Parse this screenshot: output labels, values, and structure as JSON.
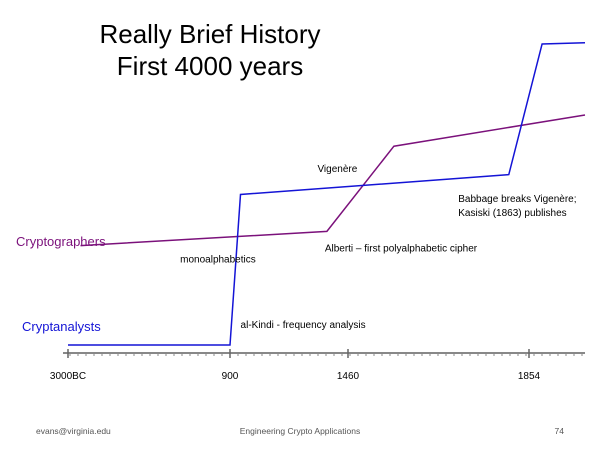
{
  "slide": {
    "title_line1": "Really Brief History",
    "title_line2": "First 4000 years",
    "footer_left": "evans@virginia.edu",
    "footer_center": "Engineering Crypto Applications",
    "footer_right": "74"
  },
  "chart_data": {
    "type": "line",
    "x_ticks": [
      "3000BC",
      "900",
      "1460",
      "1854"
    ],
    "grid": false,
    "series": [
      {
        "name": "Cryptographers",
        "color": "#7b117b",
        "points": [
          {
            "x": "-2700",
            "y": 1.95
          },
          {
            "x": "1360",
            "y": 2.2
          },
          {
            "x": "1560",
            "y": 3.7
          },
          {
            "x": "2050",
            "y": 4.25
          }
        ]
      },
      {
        "name": "Cryptanalysts",
        "color": "#1414d6",
        "points": [
          {
            "x": "3000BC",
            "y": 0.2
          },
          {
            "x": "900",
            "y": 0.2
          },
          {
            "x": "950",
            "y": 2.85
          },
          {
            "x": "1810",
            "y": 3.2
          },
          {
            "x": "1900",
            "y": 5.5
          },
          {
            "x": "2050",
            "y": 5.52
          }
        ]
      }
    ],
    "annotations": [
      {
        "text": "monoalphabetics",
        "x": "-300",
        "y": 1.65
      },
      {
        "text": "Vigenère",
        "x": "1315",
        "y": 3.25
      },
      {
        "text": "Alberti – first polyalphabetic cipher",
        "x": "1350",
        "y": 1.85
      },
      {
        "text": "Babbage breaks Vigenère;",
        "x": "1700",
        "y": 2.72
      },
      {
        "text": "Kasiski (1863) publishes",
        "x": "1700",
        "y": 2.47
      },
      {
        "text": "al-Kindi - frequency analysis",
        "x": "950",
        "y": 0.5
      }
    ]
  }
}
